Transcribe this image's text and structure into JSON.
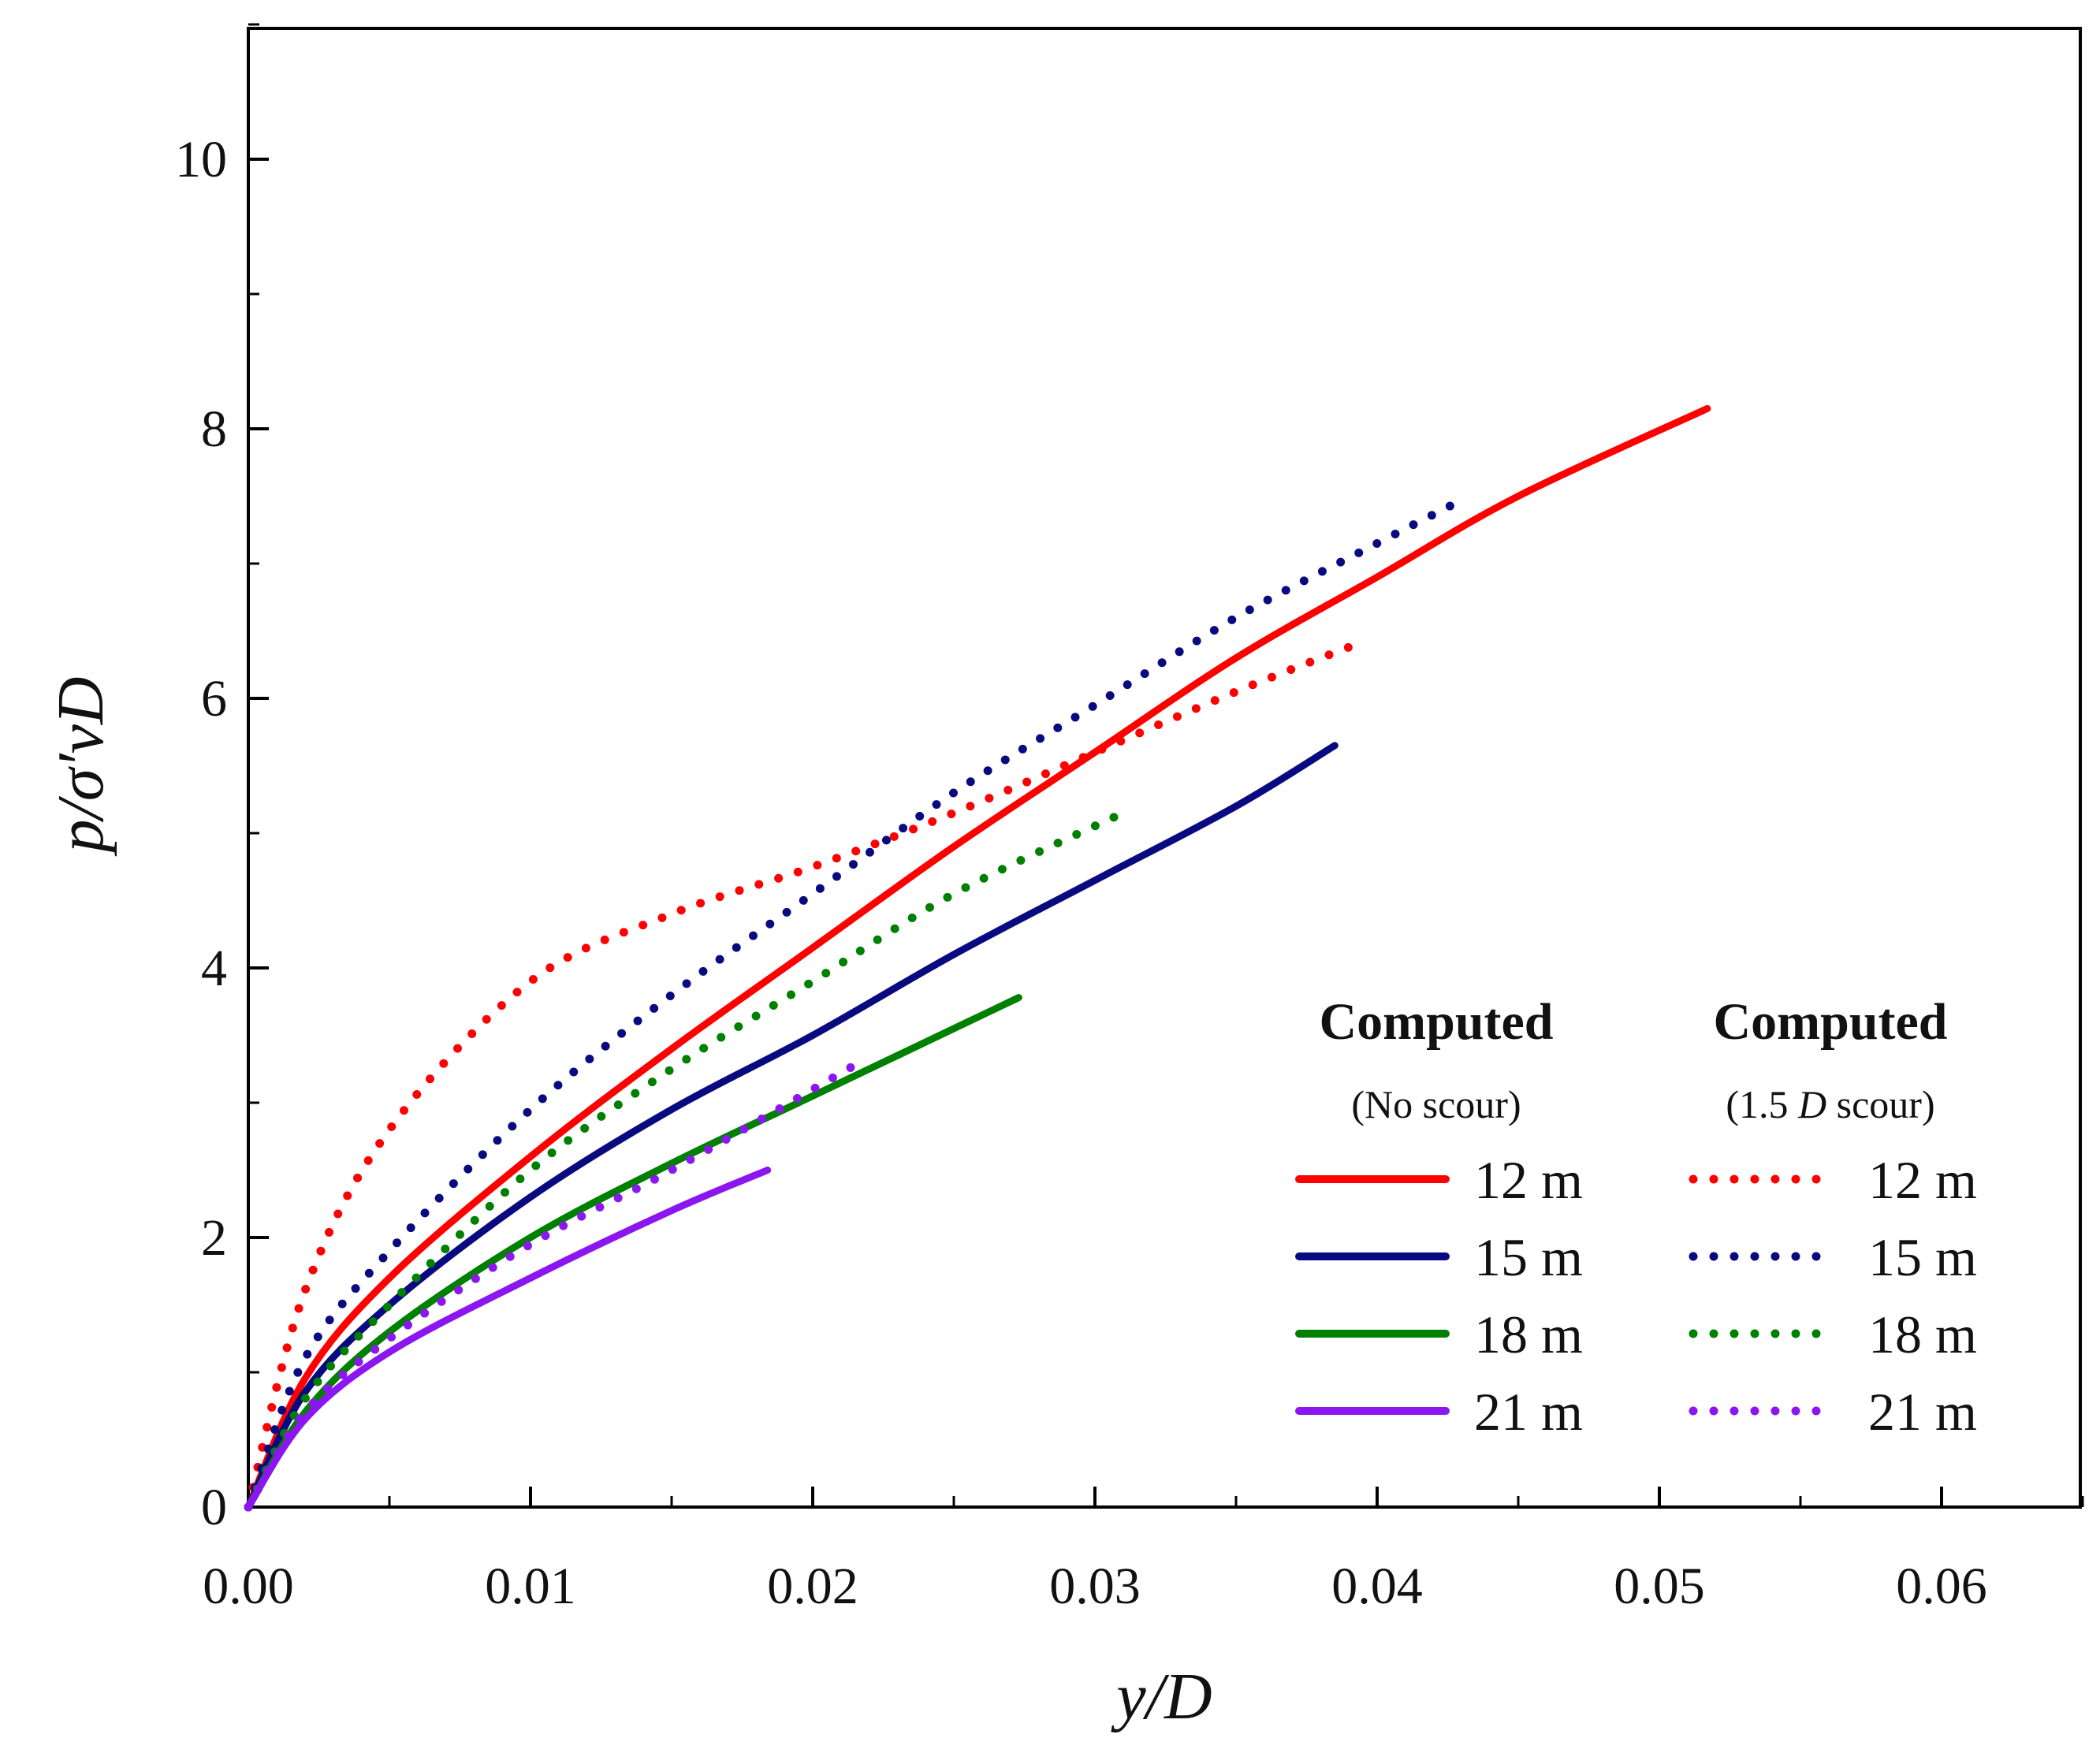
{
  "chart_data": {
    "type": "line",
    "title": "",
    "xlabel": "y/D",
    "ylabel": "p/σ′vD",
    "xlim": [
      0,
      0.065
    ],
    "ylim": [
      0,
      11
    ],
    "x_ticks": [
      0,
      0.01,
      0.02,
      0.03,
      0.04,
      0.05,
      0.06
    ],
    "x_tick_labels": [
      "0.00",
      "0.01",
      "0.02",
      "0.03",
      "0.04",
      "0.05",
      "0.06"
    ],
    "y_ticks": [
      0,
      2,
      4,
      6,
      8,
      10
    ],
    "y_tick_labels": [
      "0",
      "2",
      "4",
      "6",
      "8",
      "10"
    ],
    "legend_headers": [
      {
        "title": "Computed",
        "subtitle_prefix": "(No scour)",
        "subtitle_italic": "",
        "subtitle_suffix": ""
      },
      {
        "title": "Computed",
        "subtitle_prefix": "(1.5 ",
        "subtitle_italic": "D",
        "subtitle_suffix": " scour)"
      }
    ],
    "series": [
      {
        "name": "12 m",
        "group": "No scour",
        "style": "solid",
        "color": "#ff0000",
        "x": [
          0,
          0.002,
          0.005,
          0.01,
          0.015,
          0.02,
          0.025,
          0.03,
          0.035,
          0.04,
          0.045,
          0.0517
        ],
        "y": [
          0,
          0.95,
          1.7,
          2.6,
          3.4,
          4.15,
          4.9,
          5.6,
          6.3,
          6.9,
          7.5,
          8.15
        ]
      },
      {
        "name": "15 m",
        "group": "No scour",
        "style": "solid",
        "color": "#0a0a80",
        "x": [
          0,
          0.002,
          0.005,
          0.01,
          0.015,
          0.02,
          0.025,
          0.03,
          0.035,
          0.0385
        ],
        "y": [
          0,
          0.85,
          1.5,
          2.3,
          2.95,
          3.5,
          4.1,
          4.65,
          5.2,
          5.65
        ]
      },
      {
        "name": "18 m",
        "group": "No scour",
        "style": "solid",
        "color": "#008000",
        "x": [
          0,
          0.002,
          0.005,
          0.01,
          0.015,
          0.02,
          0.025,
          0.0273
        ],
        "y": [
          0,
          0.7,
          1.3,
          2.0,
          2.55,
          3.05,
          3.55,
          3.78
        ]
      },
      {
        "name": "21 m",
        "group": "No scour",
        "style": "solid",
        "color": "#8b16f0",
        "x": [
          0,
          0.002,
          0.005,
          0.01,
          0.015,
          0.0184
        ],
        "y": [
          0,
          0.65,
          1.15,
          1.7,
          2.2,
          2.5
        ]
      },
      {
        "name": "12 m",
        "group": "1.5 D scour",
        "style": "dotted",
        "color": "#ff0000",
        "x": [
          0,
          0.002,
          0.005,
          0.01,
          0.015,
          0.02,
          0.025,
          0.03,
          0.035,
          0.039
        ],
        "y": [
          0,
          1.6,
          2.8,
          3.9,
          4.4,
          4.75,
          5.15,
          5.6,
          6.05,
          6.38
        ]
      },
      {
        "name": "15 m",
        "group": "1.5 D scour",
        "style": "dotted",
        "color": "#0a0a80",
        "x": [
          0,
          0.002,
          0.005,
          0.01,
          0.015,
          0.02,
          0.025,
          0.03,
          0.035,
          0.04,
          0.0428
        ],
        "y": [
          0,
          1.1,
          1.9,
          2.95,
          3.8,
          4.55,
          5.3,
          5.95,
          6.6,
          7.15,
          7.45
        ]
      },
      {
        "name": "18 m",
        "group": "1.5 D scour",
        "style": "dotted",
        "color": "#008000",
        "x": [
          0,
          0.002,
          0.005,
          0.01,
          0.015,
          0.02,
          0.025,
          0.031
        ],
        "y": [
          0,
          0.8,
          1.5,
          2.5,
          3.25,
          3.9,
          4.55,
          5.15
        ]
      },
      {
        "name": "21 m",
        "group": "1.5 D scour",
        "style": "dotted",
        "color": "#8b16f0",
        "x": [
          0,
          0.002,
          0.005,
          0.01,
          0.015,
          0.0215
        ],
        "y": [
          0,
          0.7,
          1.25,
          1.95,
          2.5,
          3.28
        ]
      }
    ]
  }
}
